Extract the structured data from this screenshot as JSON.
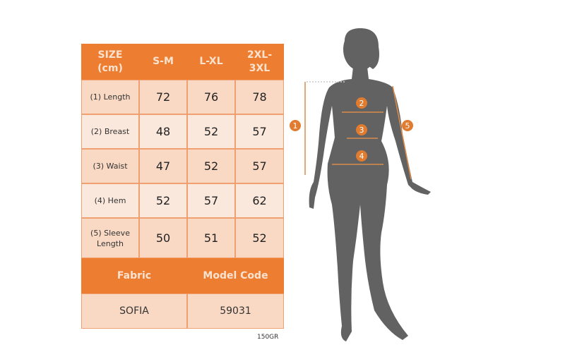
{
  "table": {
    "headers": [
      "SIZE\n(cm)",
      "S-M",
      "L-XL",
      "2XL-\n3XL"
    ],
    "rows": [
      {
        "label": "(1) Length",
        "values": [
          "72",
          "76",
          "78"
        ]
      },
      {
        "label": "(2) Breast",
        "values": [
          "48",
          "52",
          "57"
        ]
      },
      {
        "label": "(3) Waist",
        "values": [
          "47",
          "52",
          "57"
        ]
      },
      {
        "label": "(4) Hem",
        "values": [
          "52",
          "57",
          "62"
        ]
      },
      {
        "label": "(5) Sleeve Length",
        "values": [
          "50",
          "51",
          "52"
        ]
      }
    ],
    "footer_headers": [
      "Fabric",
      "Model Code"
    ],
    "footer_values": [
      "SOFIA",
      "59031"
    ]
  },
  "weight_note": "150GR",
  "figure": {
    "markers": [
      "1",
      "2",
      "3",
      "4",
      "5"
    ]
  },
  "colors": {
    "accent": "#ED7D31",
    "cell": "#F9D9C4",
    "silhouette": "#626262"
  }
}
